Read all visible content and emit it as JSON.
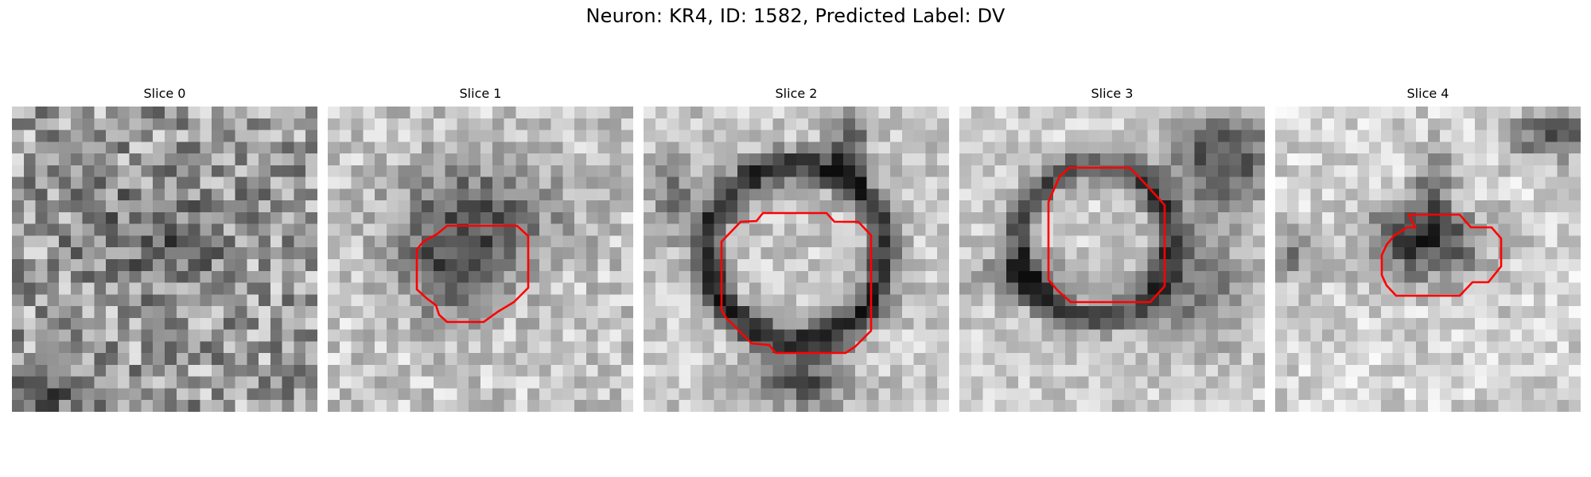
{
  "figure": {
    "title": "Neuron: KR4, ID: 1582, Predicted Label: DV",
    "contour_color": "#ff0000",
    "colormap": "gray"
  },
  "slices": [
    {
      "title": "Slice 0",
      "has_contour": false,
      "pattern": "noise"
    },
    {
      "title": "Slice 1",
      "has_contour": true,
      "pattern": "blob"
    },
    {
      "title": "Slice 2",
      "has_contour": true,
      "pattern": "ring"
    },
    {
      "title": "Slice 3",
      "has_contour": true,
      "pattern": "soma"
    },
    {
      "title": "Slice 4",
      "has_contour": true,
      "pattern": "dark-blob"
    }
  ]
}
